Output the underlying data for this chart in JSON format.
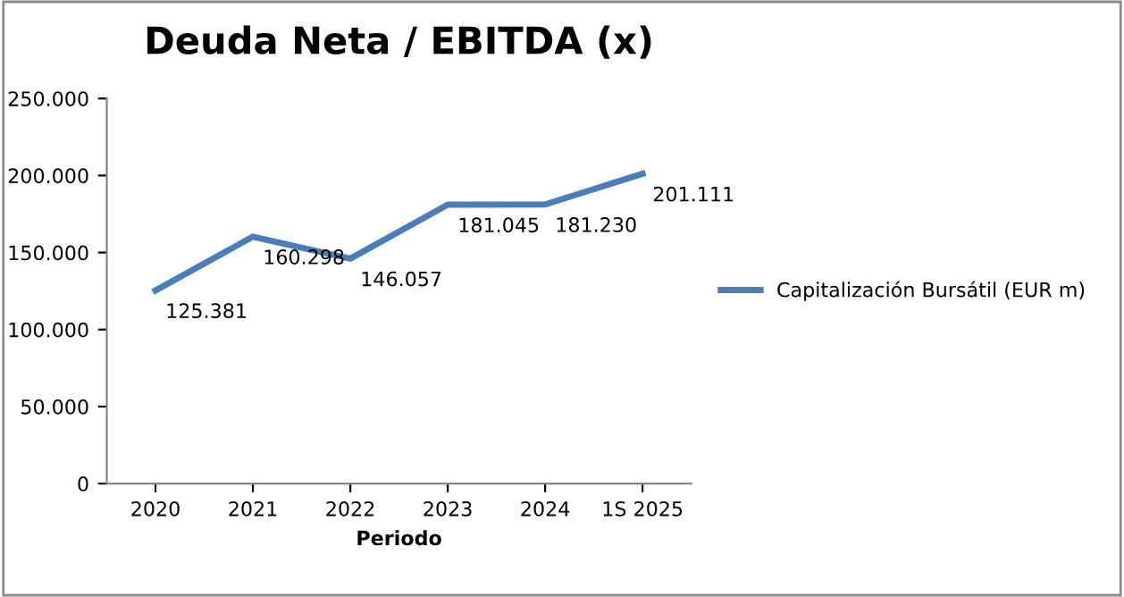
{
  "chart_data": {
    "type": "line",
    "title": "Deuda Neta / EBITDA (x)",
    "xlabel": "Periodo",
    "categories": [
      "2020",
      "2021",
      "2022",
      "2023",
      "2024",
      "1S 2025"
    ],
    "series": [
      {
        "name": "Capitalización Bursátil (EUR m)",
        "color": "#4a7ebb",
        "values": [
          125381,
          160298,
          146057,
          181045,
          181230,
          201111
        ],
        "value_labels": [
          "125.381",
          "160.298",
          "146.057",
          "181.045",
          "181.230",
          "201.111"
        ]
      }
    ],
    "ylim": [
      0,
      250000
    ],
    "yticks": [
      {
        "value": 0,
        "label": "0"
      },
      {
        "value": 50000,
        "label": "50.000"
      },
      {
        "value": 100000,
        "label": "100.000"
      },
      {
        "value": 150000,
        "label": "150.000"
      },
      {
        "value": 200000,
        "label": "200.000"
      },
      {
        "value": 250000,
        "label": "250.000"
      }
    ],
    "grid": false,
    "legend": "right",
    "marker": "none",
    "line_style": "solid"
  }
}
